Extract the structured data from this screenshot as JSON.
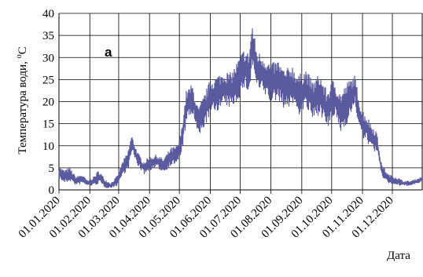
{
  "chart_data": {
    "type": "line",
    "annotation": "а",
    "ylabel_main": "Температура води, ",
    "ylabel_sup": "o",
    "ylabel_unit": "C",
    "xlabel": "Дата",
    "ylim": [
      0,
      40
    ],
    "yticks": [
      0,
      5,
      10,
      15,
      20,
      25,
      30,
      35,
      40
    ],
    "xlim": [
      "2020-01-01",
      "2020-12-31"
    ],
    "xtick_labels": [
      "01.01.2020",
      "01.02.2020",
      "01.03.2020",
      "01.04.2020",
      "01.05.2020",
      "01.06.2020",
      "01.07.2020",
      "01.08.2020",
      "01.09.2020",
      "01.10.2020",
      "01.11.2020",
      "01.12.2020"
    ],
    "xtick_dates": [
      "2020-01-01",
      "2020-02-01",
      "2020-03-01",
      "2020-04-01",
      "2020-05-01",
      "2020-06-01",
      "2020-07-01",
      "2020-08-01",
      "2020-09-01",
      "2020-10-01",
      "2020-11-01",
      "2020-12-01"
    ],
    "grid": true,
    "series": [
      {
        "color": "#5a5a9e",
        "x": [
          "2020-01-01",
          "2020-01-06",
          "2020-01-12",
          "2020-01-18",
          "2020-01-24",
          "2020-01-30",
          "2020-02-05",
          "2020-02-10",
          "2020-02-16",
          "2020-02-22",
          "2020-02-28",
          "2020-03-05",
          "2020-03-10",
          "2020-03-14",
          "2020-03-20",
          "2020-03-26",
          "2020-04-01",
          "2020-04-08",
          "2020-04-15",
          "2020-04-22",
          "2020-04-29",
          "2020-05-03",
          "2020-05-08",
          "2020-05-14",
          "2020-05-20",
          "2020-05-26",
          "2020-06-01",
          "2020-06-08",
          "2020-06-15",
          "2020-06-22",
          "2020-06-29",
          "2020-07-05",
          "2020-07-10",
          "2020-07-13",
          "2020-07-18",
          "2020-07-25",
          "2020-08-01",
          "2020-08-08",
          "2020-08-15",
          "2020-08-22",
          "2020-08-29",
          "2020-09-05",
          "2020-09-12",
          "2020-09-19",
          "2020-09-26",
          "2020-10-03",
          "2020-10-10",
          "2020-10-17",
          "2020-10-24",
          "2020-10-31",
          "2020-11-05",
          "2020-11-10",
          "2020-11-15",
          "2020-11-20",
          "2020-11-27",
          "2020-12-05",
          "2020-12-12",
          "2020-12-19",
          "2020-12-26",
          "2020-12-31"
        ],
        "y": [
          4.0,
          3.0,
          3.5,
          2.0,
          2.5,
          1.5,
          2.0,
          3.0,
          1.5,
          1.0,
          2.0,
          5.0,
          6.5,
          10.5,
          7.0,
          5.0,
          6.0,
          6.5,
          5.5,
          7.5,
          8.0,
          11.0,
          19.0,
          20.5,
          15.0,
          18.0,
          21.0,
          22.0,
          23.0,
          22.5,
          25.0,
          27.5,
          26.5,
          33.0,
          27.0,
          26.0,
          24.0,
          25.0,
          22.5,
          24.0,
          21.5,
          23.0,
          20.0,
          22.0,
          18.0,
          21.0,
          17.5,
          20.0,
          22.5,
          15.0,
          14.0,
          12.0,
          11.0,
          4.5,
          2.5,
          2.0,
          1.5,
          1.5,
          2.0,
          2.5
        ],
        "amplitude": [
          1.5,
          1.5,
          1.5,
          1.0,
          1.0,
          0.5,
          1.0,
          1.5,
          1.0,
          0.5,
          1.0,
          1.5,
          2.0,
          2.0,
          1.5,
          1.5,
          1.5,
          1.5,
          1.5,
          2.0,
          2.0,
          2.5,
          3.5,
          3.5,
          3.5,
          3.5,
          4.0,
          4.0,
          4.0,
          4.0,
          4.5,
          4.5,
          4.5,
          5.0,
          4.5,
          4.5,
          4.5,
          4.5,
          4.5,
          4.5,
          4.5,
          4.5,
          4.5,
          4.5,
          4.5,
          4.5,
          4.5,
          4.5,
          3.5,
          3.5,
          3.0,
          3.0,
          2.5,
          1.5,
          1.0,
          1.0,
          0.5,
          0.5,
          0.5,
          0.5
        ]
      }
    ]
  }
}
